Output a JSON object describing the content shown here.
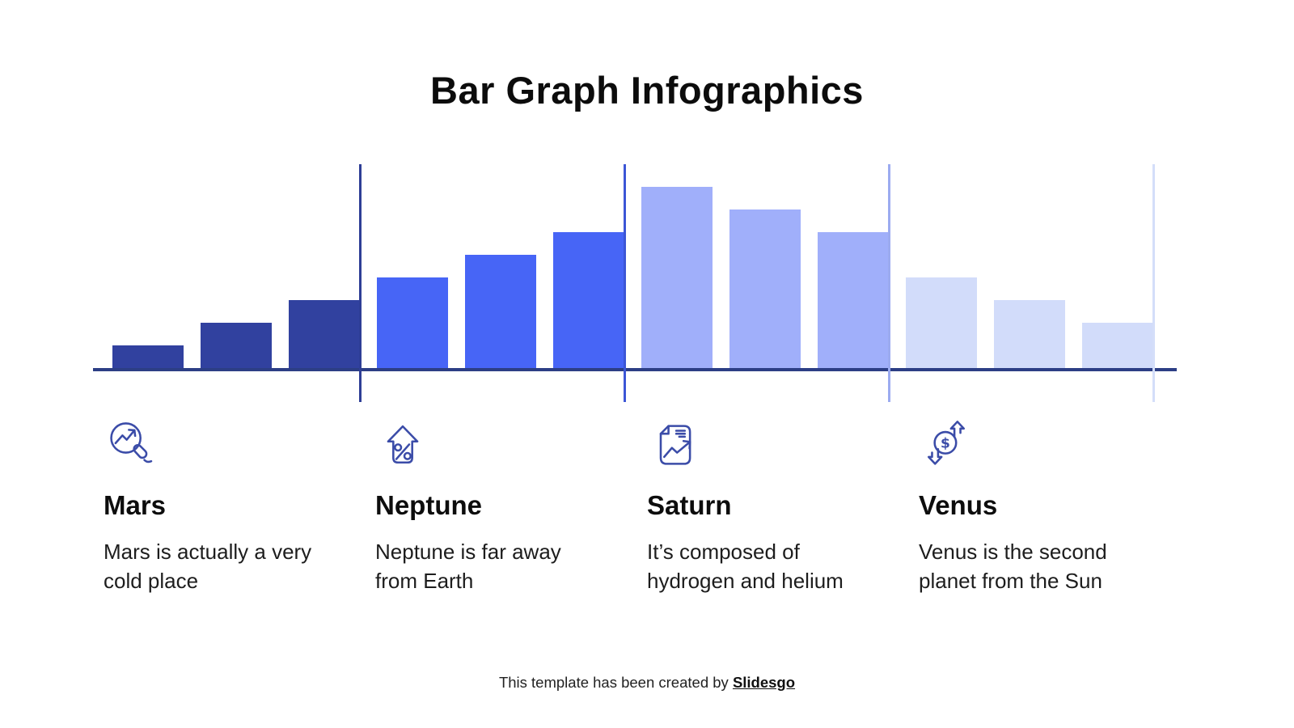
{
  "title": "Bar Graph Infographics",
  "chart_data": {
    "type": "bar",
    "title": "Bar Graph Infographics",
    "xlabel": "",
    "ylabel": "",
    "ylim": [
      0,
      9
    ],
    "grid": false,
    "legend": "none",
    "baseline_color": "#2c3e85",
    "unit": "relative height units (1 unit = 28px)",
    "categories": [
      "Mars",
      "Neptune",
      "Saturn",
      "Venus"
    ],
    "series": [
      {
        "name": "Mars",
        "values": [
          1,
          2,
          3
        ],
        "color": "#31419f",
        "divider_color": "#2e3e96"
      },
      {
        "name": "Neptune",
        "values": [
          4,
          5,
          6
        ],
        "color": "#4765f6",
        "divider_color": "#3c56d6"
      },
      {
        "name": "Saturn",
        "values": [
          8,
          7,
          6
        ],
        "color": "#a0affa",
        "divider_color": "#9cabf0"
      },
      {
        "name": "Venus",
        "values": [
          4,
          3,
          2
        ],
        "color": "#d2dcfa",
        "divider_color": "#d4def9"
      }
    ]
  },
  "icon_color": "#3b4ca8",
  "sections": [
    {
      "heading": "Mars",
      "icon": "magnifier-trend-icon",
      "description": "Mars is actually a very\ncold place"
    },
    {
      "heading": "Neptune",
      "icon": "arrow-house-percent-icon",
      "description": "Neptune is far away\nfrom Earth"
    },
    {
      "heading": "Saturn",
      "icon": "document-trend-icon",
      "description": "It’s composed of\nhydrogen and helium"
    },
    {
      "heading": "Venus",
      "icon": "dollar-exchange-icon",
      "description": "Venus is the second\nplanet from the Sun"
    }
  ],
  "footer": {
    "text": "This template has been created by ",
    "brand": "Slidesgo"
  }
}
